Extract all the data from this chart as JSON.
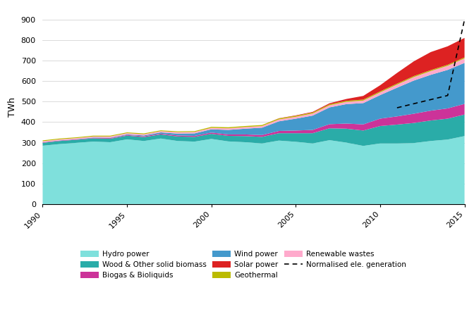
{
  "years": [
    1990,
    1991,
    1992,
    1993,
    1994,
    1995,
    1996,
    1997,
    1998,
    1999,
    2000,
    2001,
    2002,
    2003,
    2004,
    2005,
    2006,
    2007,
    2008,
    2009,
    2010,
    2011,
    2012,
    2013,
    2014,
    2015
  ],
  "hydro": [
    285,
    293,
    299,
    305,
    302,
    316,
    308,
    320,
    308,
    305,
    318,
    306,
    302,
    296,
    310,
    304,
    296,
    312,
    300,
    284,
    296,
    296,
    298,
    308,
    315,
    332
  ],
  "wood_biomass": [
    14,
    15,
    15,
    16,
    17,
    18,
    19,
    20,
    22,
    23,
    25,
    27,
    30,
    32,
    36,
    42,
    50,
    58,
    68,
    75,
    85,
    92,
    98,
    100,
    102,
    105
  ],
  "biogas": [
    2,
    2,
    2,
    2,
    3,
    3,
    4,
    4,
    5,
    5,
    6,
    7,
    8,
    9,
    11,
    13,
    16,
    20,
    25,
    30,
    36,
    40,
    45,
    48,
    50,
    52
  ],
  "wind": [
    1,
    1,
    1,
    2,
    2,
    3,
    4,
    6,
    9,
    12,
    16,
    22,
    28,
    36,
    47,
    58,
    70,
    82,
    95,
    104,
    115,
    140,
    162,
    175,
    188,
    200
  ],
  "renewable_wastes": [
    5,
    5,
    5,
    5,
    6,
    6,
    6,
    6,
    7,
    7,
    7,
    8,
    8,
    8,
    9,
    9,
    10,
    10,
    11,
    12,
    13,
    15,
    17,
    18,
    20,
    22
  ],
  "geothermal": [
    4,
    4,
    4,
    4,
    4,
    4,
    4,
    4,
    4,
    4,
    5,
    5,
    5,
    5,
    5,
    5,
    5,
    5,
    5,
    5,
    5,
    5,
    5,
    5,
    5,
    5
  ],
  "solar": [
    0,
    0,
    0,
    0,
    0,
    0,
    0,
    0,
    0,
    0,
    0,
    0,
    0,
    0,
    1,
    2,
    3,
    5,
    9,
    18,
    30,
    52,
    72,
    88,
    90,
    95
  ],
  "normalised": [
    null,
    null,
    null,
    null,
    null,
    null,
    null,
    null,
    null,
    null,
    null,
    null,
    null,
    null,
    null,
    null,
    null,
    null,
    null,
    null,
    null,
    470,
    490,
    510,
    530,
    900
  ],
  "colors": {
    "hydro": "#7FE0DC",
    "wood_biomass": "#2AACA8",
    "biogas": "#CC3399",
    "wind": "#4499CC",
    "renewable_wastes": "#FFAACC",
    "geothermal": "#BBBB00",
    "solar": "#DD2222"
  },
  "ylabel": "TWh",
  "ylim": [
    0,
    950
  ],
  "xlim": [
    1990,
    2015
  ],
  "yticks": [
    0,
    100,
    200,
    300,
    400,
    500,
    600,
    700,
    800,
    900
  ],
  "xticks": [
    1990,
    1995,
    2000,
    2005,
    2010,
    2015
  ],
  "legend_entries": [
    "Hydro power",
    "Wood & Other solid biomass",
    "Biogas & Bioliquids",
    "Wind power",
    "Solar power",
    "Geothermal",
    "Renewable wastes",
    "Normalised ele. generation"
  ]
}
